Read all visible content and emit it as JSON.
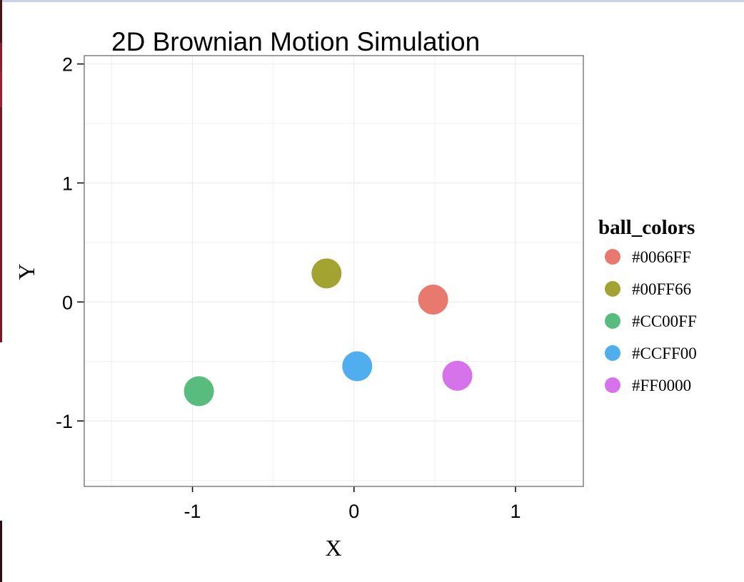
{
  "chart_data": {
    "type": "scatter",
    "title": "2D Brownian Motion Simulation",
    "xlabel": "X",
    "ylabel": "Y",
    "xlim": [
      -1.67,
      1.42
    ],
    "ylim": [
      -1.55,
      2.07
    ],
    "xticks": [
      -1,
      0,
      1
    ],
    "yticks": [
      -1,
      0,
      1,
      2
    ],
    "xtick_labels": [
      "-1",
      "0",
      "1"
    ],
    "ytick_labels": [
      "-1",
      "0",
      "1",
      "2"
    ],
    "grid": true,
    "legend": {
      "title": "ball_colors",
      "placement": "right"
    },
    "series": [
      {
        "name": "#0066FF",
        "color": "#E8796F",
        "x": [
          0.49
        ],
        "y": [
          0.02
        ]
      },
      {
        "name": "#00FF66",
        "color": "#A3A332",
        "x": [
          -0.17
        ],
        "y": [
          0.24
        ]
      },
      {
        "name": "#CC00FF",
        "color": "#57BC7D",
        "x": [
          -0.96
        ],
        "y": [
          -0.75
        ]
      },
      {
        "name": "#CCFF00",
        "color": "#50ADEE",
        "x": [
          0.02
        ],
        "y": [
          -0.54
        ]
      },
      {
        "name": "#FF0000",
        "color": "#D773EA",
        "x": [
          0.64
        ],
        "y": [
          -0.62
        ]
      }
    ]
  }
}
